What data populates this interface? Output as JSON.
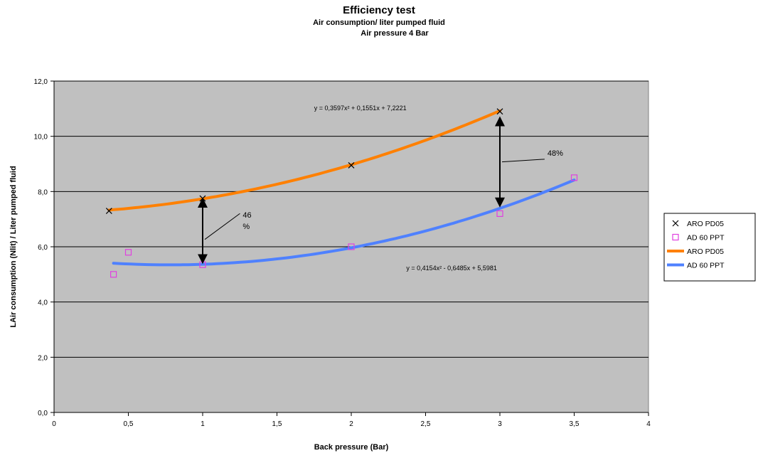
{
  "chart_data": {
    "type": "scatter",
    "title": "Efficiency test",
    "subtitle": "Air consumption/ liter pumped fluid",
    "subtitle2": "Air pressure 4 Bar",
    "xlabel": "Back pressure (Bar)",
    "ylabel": "LAir consumption (Nlit) / Liter pumped fluid",
    "xlim": [
      0,
      4
    ],
    "ylim": [
      0,
      12
    ],
    "xticks": [
      0,
      0.5,
      1,
      1.5,
      2,
      2.5,
      3,
      3.5,
      4
    ],
    "yticks": [
      0,
      2,
      4,
      6,
      8,
      10,
      12
    ],
    "xtick_labels": [
      "0",
      "0,5",
      "1",
      "1,5",
      "2",
      "2,5",
      "3",
      "3,5",
      "4"
    ],
    "ytick_labels": [
      "0,0",
      "2,0",
      "4,0",
      "6,0",
      "8,0",
      "10,0",
      "12,0"
    ],
    "grid": "horizontal",
    "legend_position": "right",
    "plot_background": "#c0c0c0",
    "series": [
      {
        "name": "ARO PD05",
        "marker": "x",
        "color": "#000000",
        "points": [
          [
            0.37,
            7.3
          ],
          [
            1.0,
            7.75
          ],
          [
            2.0,
            8.95
          ],
          [
            3.0,
            10.9
          ]
        ]
      },
      {
        "name": "AD 60 PPT",
        "marker": "square",
        "color": "#e040e0",
        "points": [
          [
            0.4,
            5.0
          ],
          [
            0.5,
            5.8
          ],
          [
            1.0,
            5.35
          ],
          [
            2.0,
            6.0
          ],
          [
            3.0,
            7.2
          ],
          [
            3.5,
            8.5
          ]
        ]
      }
    ],
    "trendlines": [
      {
        "name": "ARO PD05",
        "color": "#ff8000",
        "coefficients": [
          0.3597,
          0.1551,
          7.2221
        ],
        "x_range": [
          0.37,
          3.0
        ],
        "equation": "y = 0,3597x² + 0,1551x + 7,2221"
      },
      {
        "name": "AD 60 PPT",
        "color": "#4f81ff",
        "coefficients": [
          0.4154,
          -0.6485,
          5.5981
        ],
        "x_range": [
          0.4,
          3.5
        ],
        "equation": "y = 0,4154x² - 0,6485x + 5,5981"
      }
    ],
    "annotations": [
      {
        "id": "gap-1",
        "x": 1.0,
        "y_from": 5.4,
        "y_to": 7.75,
        "text_lines": [
          "46",
          "%"
        ],
        "text_x": 1.27,
        "text_y": 7.05
      },
      {
        "id": "gap-3",
        "x": 3.0,
        "y_from": 7.45,
        "y_to": 10.7,
        "text_lines": [
          "48%"
        ],
        "text_x": 3.32,
        "text_y": 9.3
      }
    ]
  }
}
